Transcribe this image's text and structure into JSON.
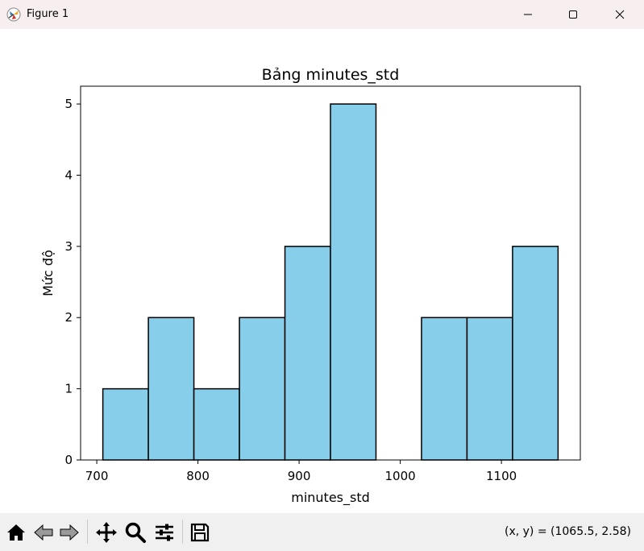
{
  "window": {
    "title": "Figure 1"
  },
  "toolbar": {
    "tools": [
      "home-icon",
      "back-icon",
      "forward-icon",
      "pan-icon",
      "zoom-icon",
      "configure-subplots-icon",
      "save-icon"
    ],
    "coords": "(x, y) = (1065.5, 2.58)"
  },
  "colors": {
    "bar_fill": "#87ceeb",
    "bar_edge": "#000000",
    "titlebar": "#f7efef",
    "toolbar": "#f0f0f0"
  },
  "chart_data": {
    "type": "bar",
    "title": "Bảng minutes_std",
    "xlabel": "minutes_std",
    "ylabel": "Mức độ",
    "bin_edges": [
      706,
      751,
      796,
      841,
      886,
      931,
      976,
      1021,
      1066,
      1111,
      1156
    ],
    "values": [
      1,
      2,
      1,
      2,
      3,
      5,
      0,
      2,
      2,
      3
    ],
    "xlim": [
      684,
      1178
    ],
    "ylim": [
      0,
      5.25
    ],
    "xticks": [
      700,
      800,
      900,
      1000,
      1100
    ],
    "yticks": [
      0,
      1,
      2,
      3,
      4,
      5
    ],
    "grid": false
  }
}
